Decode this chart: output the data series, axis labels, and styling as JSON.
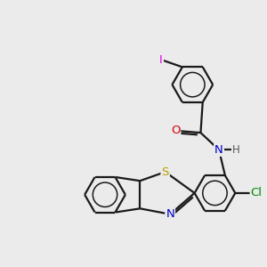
{
  "bg_color": "#ebebeb",
  "bond_color": "#1a1a1a",
  "bond_width": 1.6,
  "atom_colors": {
    "I": "#e000e0",
    "O": "#dd0000",
    "N": "#0000cc",
    "S": "#b8a000",
    "Cl": "#008800",
    "H": "#555555"
  },
  "font_size": 9.5
}
